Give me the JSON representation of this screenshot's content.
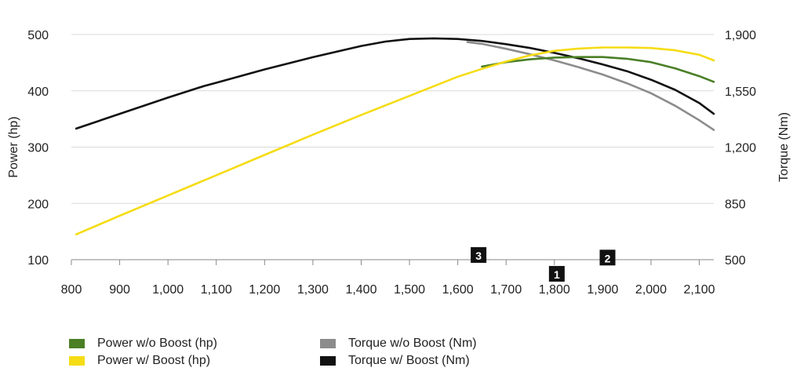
{
  "chart_data": {
    "type": "line",
    "xlabel": "",
    "ylabel": "Power (hp)",
    "y2label": "Torque (Nm)",
    "xlim": [
      800,
      2130
    ],
    "ylim": [
      100,
      500
    ],
    "y2lim": [
      500,
      1900
    ],
    "xticks": [
      800,
      900,
      1000,
      1100,
      1200,
      1300,
      1400,
      1500,
      1600,
      1700,
      1800,
      1900,
      2000,
      2100
    ],
    "xtick_labels": [
      "800",
      "900",
      "1,000",
      "1,100",
      "1,200",
      "1,300",
      "1,400",
      "1,500",
      "1,600",
      "1,700",
      "1,800",
      "1,900",
      "2,000",
      "2,100"
    ],
    "yticks": [
      100,
      200,
      300,
      400,
      500
    ],
    "ytick_labels": [
      "100",
      "200",
      "300",
      "400",
      "500"
    ],
    "y2ticks": [
      500,
      850,
      1200,
      1550,
      1900
    ],
    "y2tick_labels": [
      "500",
      "850",
      "1,200",
      "1,550",
      "1,900"
    ],
    "grid": "horizontal",
    "legend_position": "bottom-left",
    "series": [
      {
        "name": "Power w/o Boost (hp)",
        "axis": "left",
        "color": "#4a7f26",
        "x": [
          1650,
          1700,
          1750,
          1800,
          1850,
          1900,
          1950,
          2000,
          2050,
          2100,
          2130
        ],
        "values": [
          443,
          451,
          456,
          459,
          460,
          460,
          457,
          451,
          440,
          426,
          416
        ]
      },
      {
        "name": "Power w/ Boost (hp)",
        "axis": "left",
        "color": "#f5dc14",
        "x": [
          810,
          900,
          1000,
          1100,
          1200,
          1300,
          1400,
          1500,
          1600,
          1650,
          1700,
          1750,
          1800,
          1850,
          1900,
          1950,
          2000,
          2050,
          2100,
          2130
        ],
        "values": [
          145,
          178,
          214,
          250,
          286,
          322,
          357,
          391,
          425,
          439,
          452,
          463,
          471,
          475,
          477,
          477,
          476,
          472,
          464,
          454
        ]
      },
      {
        "name": "Torque w/o Boost (Nm)",
        "axis": "right",
        "color": "#8c8c8c",
        "x": [
          1620,
          1650,
          1700,
          1750,
          1800,
          1850,
          1900,
          1950,
          2000,
          2050,
          2100,
          2130
        ],
        "values": [
          1853,
          1842,
          1811,
          1777,
          1739,
          1697,
          1651,
          1597,
          1535,
          1457,
          1367,
          1307
        ]
      },
      {
        "name": "Torque w/ Boost (Nm)",
        "axis": "right",
        "color": "#111111",
        "x": [
          810,
          900,
          1000,
          1075,
          1100,
          1200,
          1300,
          1400,
          1450,
          1500,
          1550,
          1600,
          1650,
          1700,
          1750,
          1800,
          1850,
          1900,
          1950,
          2000,
          2050,
          2100,
          2130
        ],
        "values": [
          1315,
          1407,
          1508,
          1580,
          1600,
          1683,
          1759,
          1829,
          1856,
          1872,
          1876,
          1872,
          1860,
          1840,
          1816,
          1786,
          1752,
          1714,
          1672,
          1619,
          1556,
          1474,
          1407
        ]
      }
    ],
    "annotations": [
      {
        "label": "1",
        "x": 1805,
        "y": 412
      },
      {
        "label": "2",
        "x": 1910,
        "y": 513
      },
      {
        "label": "3",
        "x": 1643,
        "y": 529
      }
    ]
  },
  "legend": {
    "items": [
      {
        "label": "Power w/o Boost (hp)",
        "color": "#4a7f26"
      },
      {
        "label": "Torque w/o Boost (Nm)",
        "color": "#8c8c8c"
      },
      {
        "label": "Power w/ Boost (hp)",
        "color": "#f5dc14"
      },
      {
        "label": "Torque w/ Boost (Nm)",
        "color": "#111111"
      }
    ]
  }
}
